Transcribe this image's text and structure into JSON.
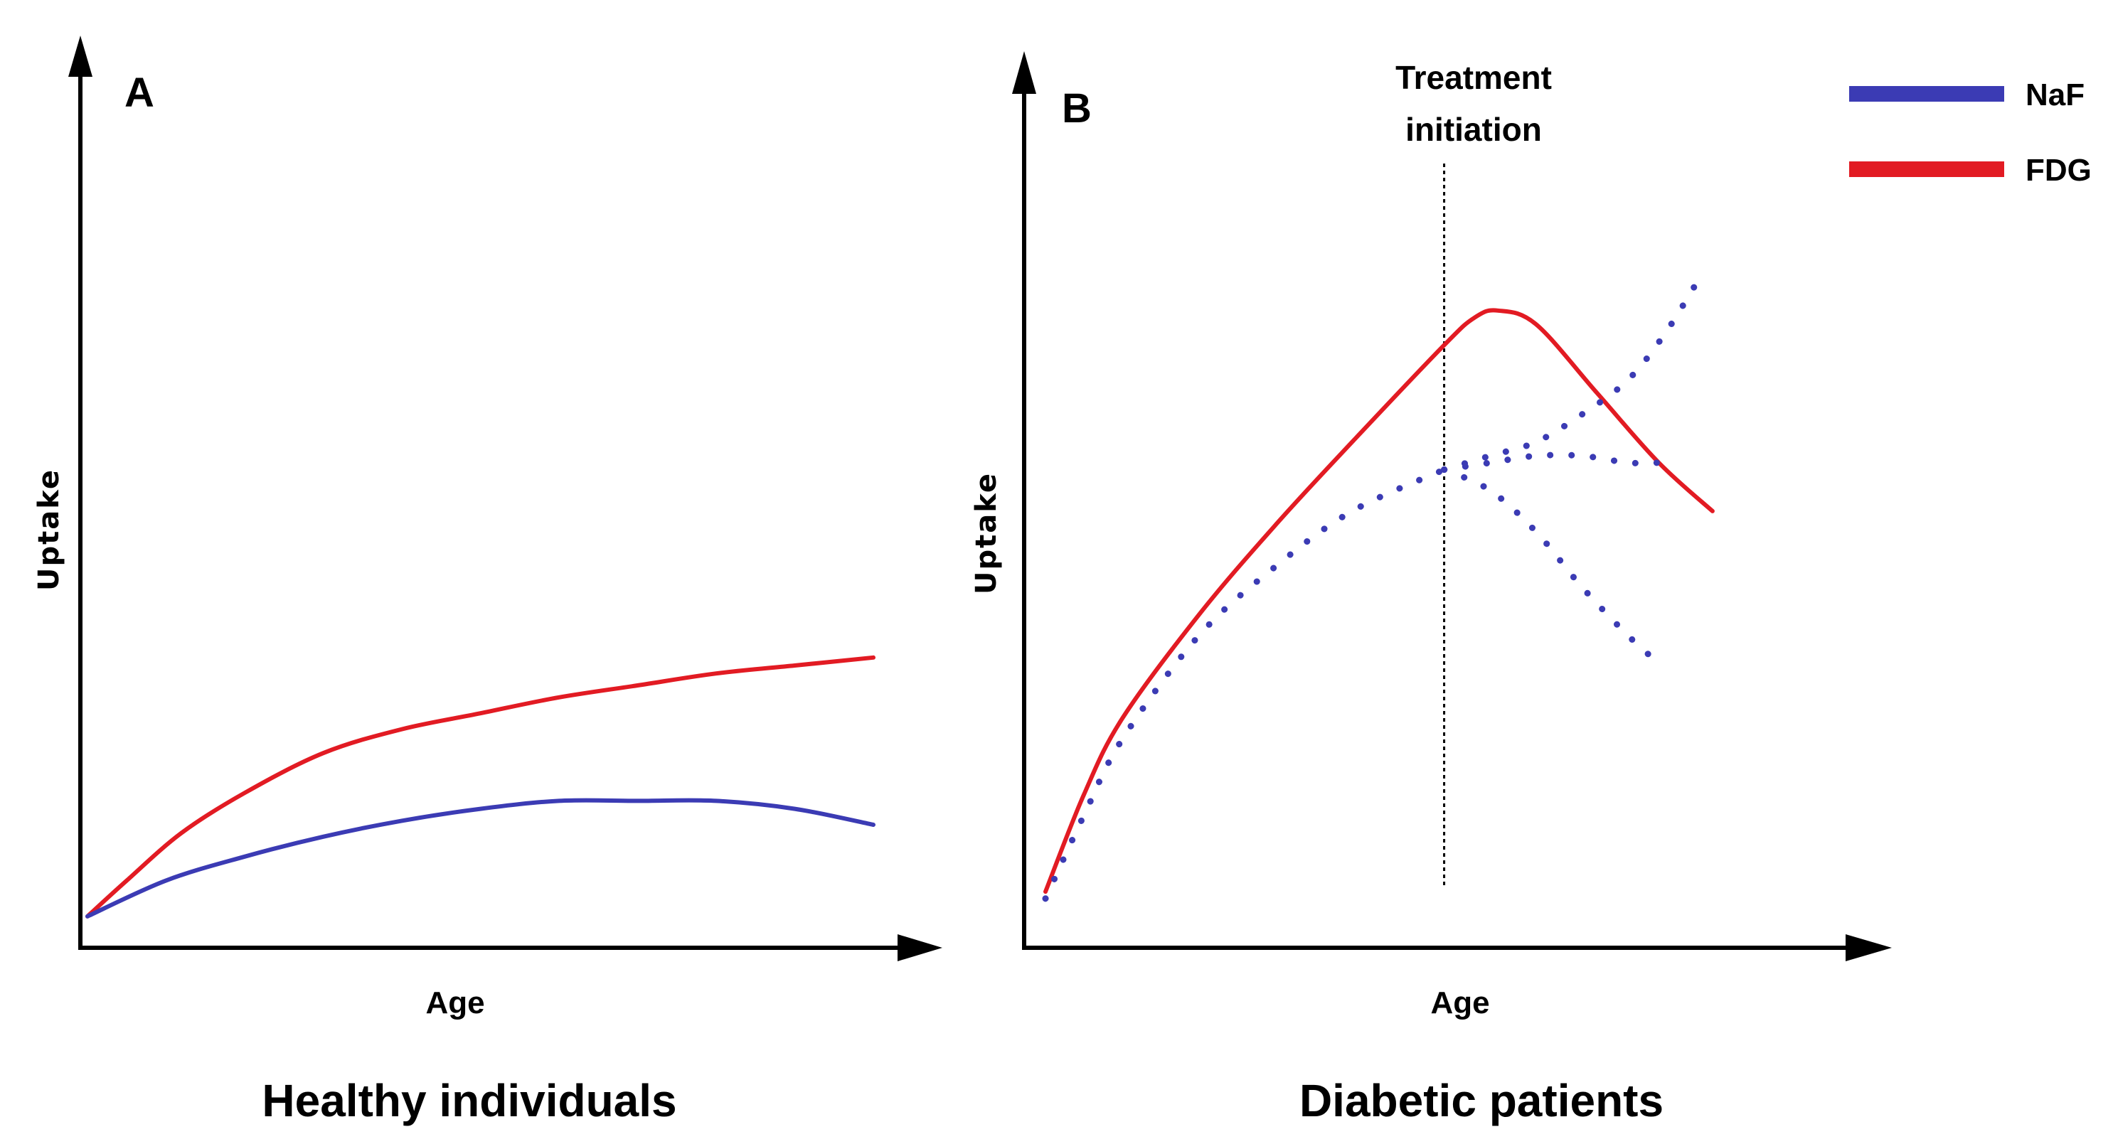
{
  "colors": {
    "naf": "#3b3bb4",
    "fdg": "#e21b23",
    "axis": "#000000"
  },
  "legend": [
    {
      "label": "NaF",
      "color": "#3b3bb4"
    },
    {
      "label": "FDG",
      "color": "#e21b23"
    }
  ],
  "chart_data": [
    {
      "type": "line",
      "panel": "A",
      "caption": "Healthy individuals",
      "xlabel": "Age",
      "ylabel": "Uptake",
      "xlim": [
        0,
        100
      ],
      "ylim": [
        0,
        100
      ],
      "grid": false,
      "series": [
        {
          "name": "FDG",
          "style": "solid",
          "color": "#e21b23",
          "x": [
            0,
            5,
            12,
            20,
            30,
            40,
            50,
            60,
            70,
            80,
            90,
            100
          ],
          "y": [
            2,
            11,
            23,
            33,
            43,
            49,
            53,
            57,
            60,
            63,
            65,
            67
          ]
        },
        {
          "name": "NaF",
          "style": "solid",
          "color": "#3b3bb4",
          "x": [
            0,
            10,
            20,
            30,
            40,
            50,
            60,
            70,
            80,
            90,
            100
          ],
          "y": [
            2,
            11,
            17,
            22,
            26,
            29,
            31,
            31,
            31,
            29,
            25
          ]
        }
      ]
    },
    {
      "type": "line",
      "panel": "B",
      "caption": "Diabetic patients",
      "xlabel": "Age",
      "ylabel": "Uptake",
      "xlim": [
        0,
        100
      ],
      "ylim": [
        0,
        100
      ],
      "grid": false,
      "annotation": {
        "text_line1": "Treatment",
        "text_line2": "initiation",
        "x": 52
      },
      "series": [
        {
          "name": "FDG",
          "style": "solid",
          "color": "#e21b23",
          "x": [
            0,
            5,
            10,
            20,
            30,
            40,
            52,
            56,
            59,
            64,
            72,
            80,
            87
          ],
          "y": [
            4,
            18,
            29,
            44,
            57,
            69,
            83,
            87,
            88,
            86,
            76,
            66,
            59
          ]
        },
        {
          "name": "NaF",
          "style": "dotted",
          "color": "#3b3bb4",
          "x": [
            0,
            5,
            10,
            20,
            30,
            40,
            52
          ],
          "y": [
            3,
            15,
            26,
            41,
            51,
            59,
            65
          ]
        },
        {
          "name": "NaF (increase)",
          "style": "dotted",
          "color": "#3b3bb4",
          "x": [
            52,
            58,
            64,
            70,
            76,
            81,
            86
          ],
          "y": [
            65,
            67,
            69,
            73,
            78,
            85,
            94
          ]
        },
        {
          "name": "NaF (stable)",
          "style": "dotted",
          "color": "#3b3bb4",
          "x": [
            52,
            58,
            64,
            70,
            76,
            80
          ],
          "y": [
            65,
            66,
            67,
            67,
            66,
            66
          ]
        },
        {
          "name": "NaF (decrease)",
          "style": "dotted",
          "color": "#3b3bb4",
          "x": [
            52,
            58,
            64,
            70,
            76,
            80
          ],
          "y": [
            65,
            62,
            56,
            48,
            41,
            37
          ]
        }
      ]
    }
  ]
}
